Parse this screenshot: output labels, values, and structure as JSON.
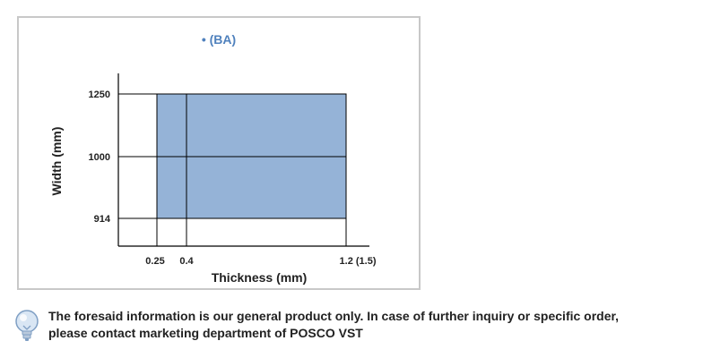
{
  "chart_data": {
    "type": "range-area",
    "title": "• (BA)",
    "xlabel": "Thickness (mm)",
    "ylabel": "Width (mm)",
    "x_ticks": [
      {
        "value": 0.25,
        "label": "0.25"
      },
      {
        "value": 0.4,
        "label": "0.4"
      },
      {
        "value": 1.2,
        "label": "1.2 (1.5)"
      }
    ],
    "y_ticks": [
      {
        "value": 914,
        "label": "914"
      },
      {
        "value": 1000,
        "label": "1000"
      },
      {
        "value": 1250,
        "label": "1250"
      }
    ],
    "available_range": {
      "thickness": [
        0.25,
        1.2
      ],
      "width": [
        914,
        1250
      ]
    },
    "fill_color": "#95b3d7",
    "title_color": "#4f81bd",
    "grid": "lines at tick values"
  },
  "note": {
    "icon": "lightbulb-icon",
    "line1": "The foresaid information is our general product only. In case of further inquiry or specific order,",
    "line2": "please contact marketing department of POSCO VST"
  }
}
